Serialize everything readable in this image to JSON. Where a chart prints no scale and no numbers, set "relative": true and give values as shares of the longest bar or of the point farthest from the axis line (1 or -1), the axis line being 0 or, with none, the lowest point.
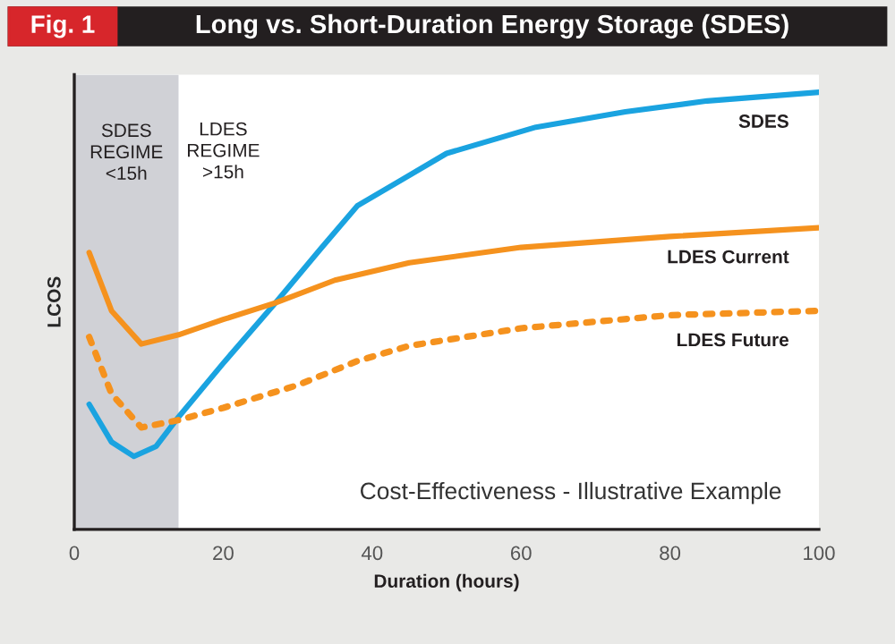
{
  "chart_data": {
    "type": "line",
    "title": "Long vs. Short-Duration Energy Storage (SDES)",
    "xlabel": "Duration (hours)",
    "ylabel": "LCOS",
    "relative": true,
    "xlim": [
      0,
      100
    ],
    "xticks": [
      0,
      20,
      40,
      60,
      80,
      100
    ],
    "tick_labels": "x",
    "grid": false,
    "legend": false,
    "annotations": [
      "Fig. 1",
      "LDES\nREGIME\n>15h",
      "Cost-Effectiveness - Illustrative Example"
    ],
    "bands": [
      {
        "axis": "x",
        "from": 0,
        "to": 14,
        "label": "SDES\nREGIME\n<15h",
        "color": "#d0d1d6"
      }
    ],
    "series": [
      {
        "name": "SDES",
        "color": "#1aa3e0",
        "line_style": "solid",
        "x": [
          2,
          5,
          8,
          11,
          14,
          20,
          27,
          33,
          38,
          44,
          50,
          62,
          74,
          85,
          100
        ],
        "values": [
          0.286,
          0.2,
          0.167,
          0.19,
          0.257,
          0.38,
          0.518,
          0.64,
          0.74,
          0.8,
          0.86,
          0.92,
          0.955,
          0.98,
          1.0
        ]
      },
      {
        "name": "LDES Current",
        "color": "#f5921e",
        "line_style": "solid",
        "x": [
          2,
          5,
          9,
          14,
          20,
          27,
          35,
          45,
          60,
          80,
          100
        ],
        "values": [
          0.633,
          0.5,
          0.424,
          0.445,
          0.48,
          0.518,
          0.57,
          0.61,
          0.645,
          0.67,
          0.69
        ]
      },
      {
        "name": "LDES Future",
        "color": "#f5921e",
        "line_style": "dotted",
        "x": [
          2,
          5,
          9,
          14,
          20,
          30,
          38,
          45,
          60,
          80,
          100
        ],
        "values": [
          0.44,
          0.31,
          0.233,
          0.25,
          0.278,
          0.33,
          0.385,
          0.42,
          0.46,
          0.49,
          0.5
        ]
      }
    ]
  }
}
